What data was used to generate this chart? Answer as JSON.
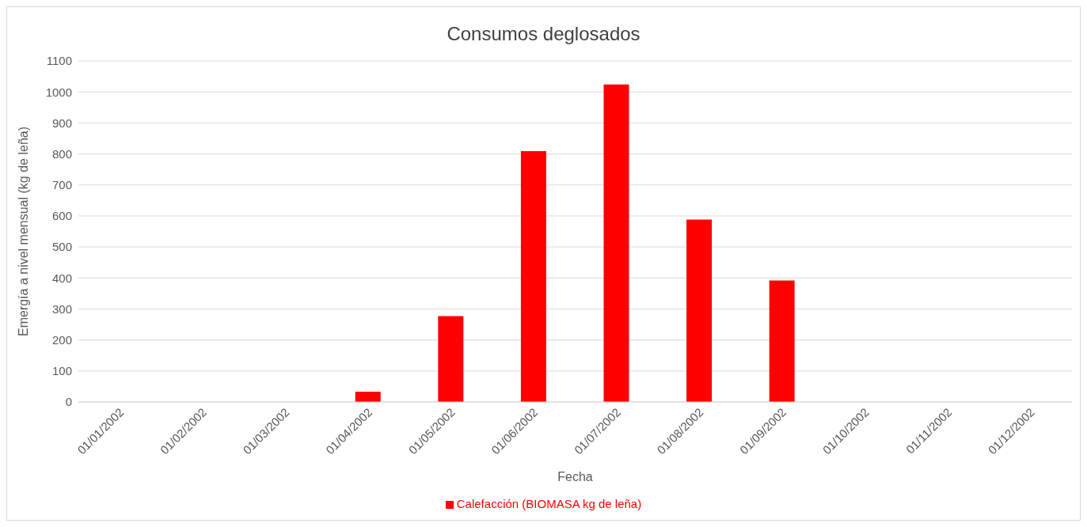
{
  "chart_data": {
    "type": "bar",
    "title": "Consumos deglosados",
    "xlabel": "Fecha",
    "ylabel": "Emergía a nivel mensual (kg de leña)",
    "categories": [
      "01/01/2002",
      "01/02/2002",
      "01/03/2002",
      "01/04/2002",
      "01/05/2002",
      "01/06/2002",
      "01/07/2002",
      "01/08/2002",
      "01/09/2002",
      "01/10/2002",
      "01/11/2002",
      "01/12/2002"
    ],
    "series": [
      {
        "name": "Calefacción (BIOMASA kg de leña)",
        "color": "#ff0000",
        "values": [
          0,
          0,
          0,
          33,
          277,
          809,
          1024,
          588,
          392,
          0,
          0,
          0
        ]
      }
    ],
    "ylim": [
      0,
      1100
    ],
    "yticks": [
      0,
      100,
      200,
      300,
      400,
      500,
      600,
      700,
      800,
      900,
      1000,
      1100
    ],
    "grid": "y",
    "legend": "bottom"
  }
}
